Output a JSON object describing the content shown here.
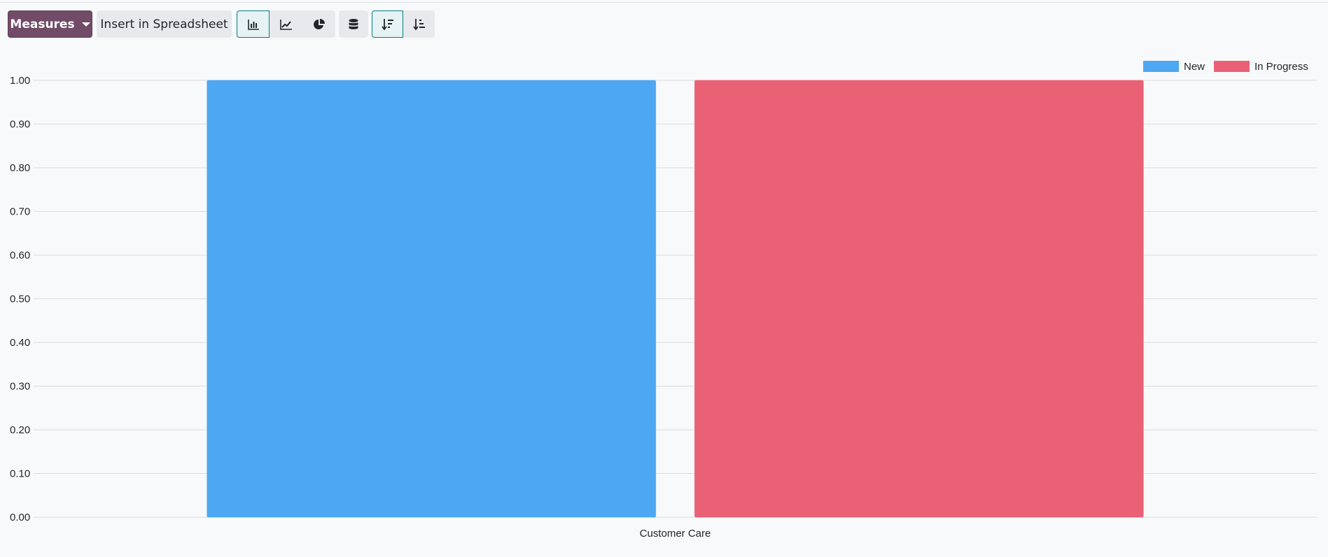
{
  "toolbar": {
    "measures_label": "Measures",
    "insert_label": "Insert in Spreadsheet",
    "chart_types": [
      {
        "icon": "bar-chart-icon",
        "active": true
      },
      {
        "icon": "line-chart-icon",
        "active": false
      },
      {
        "icon": "pie-chart-icon",
        "active": false
      }
    ],
    "stacked_icon": "database-stack-icon",
    "sort": [
      {
        "icon": "sort-descending-icon",
        "active": true
      },
      {
        "icon": "sort-ascending-icon",
        "active": false
      }
    ],
    "accent": "#714b67"
  },
  "chart_data": {
    "type": "bar",
    "categories": [
      "Customer Care"
    ],
    "series": [
      {
        "name": "New",
        "values": [
          1
        ],
        "color": "#4ea7f2"
      },
      {
        "name": "In Progress",
        "values": [
          1
        ],
        "color": "#ea6175"
      }
    ],
    "ylim": [
      0,
      1
    ],
    "yticks": [
      "0.00",
      "0.10",
      "0.20",
      "0.30",
      "0.40",
      "0.50",
      "0.60",
      "0.70",
      "0.80",
      "0.90",
      "1.00"
    ],
    "grid": true,
    "legend": "top-right"
  }
}
